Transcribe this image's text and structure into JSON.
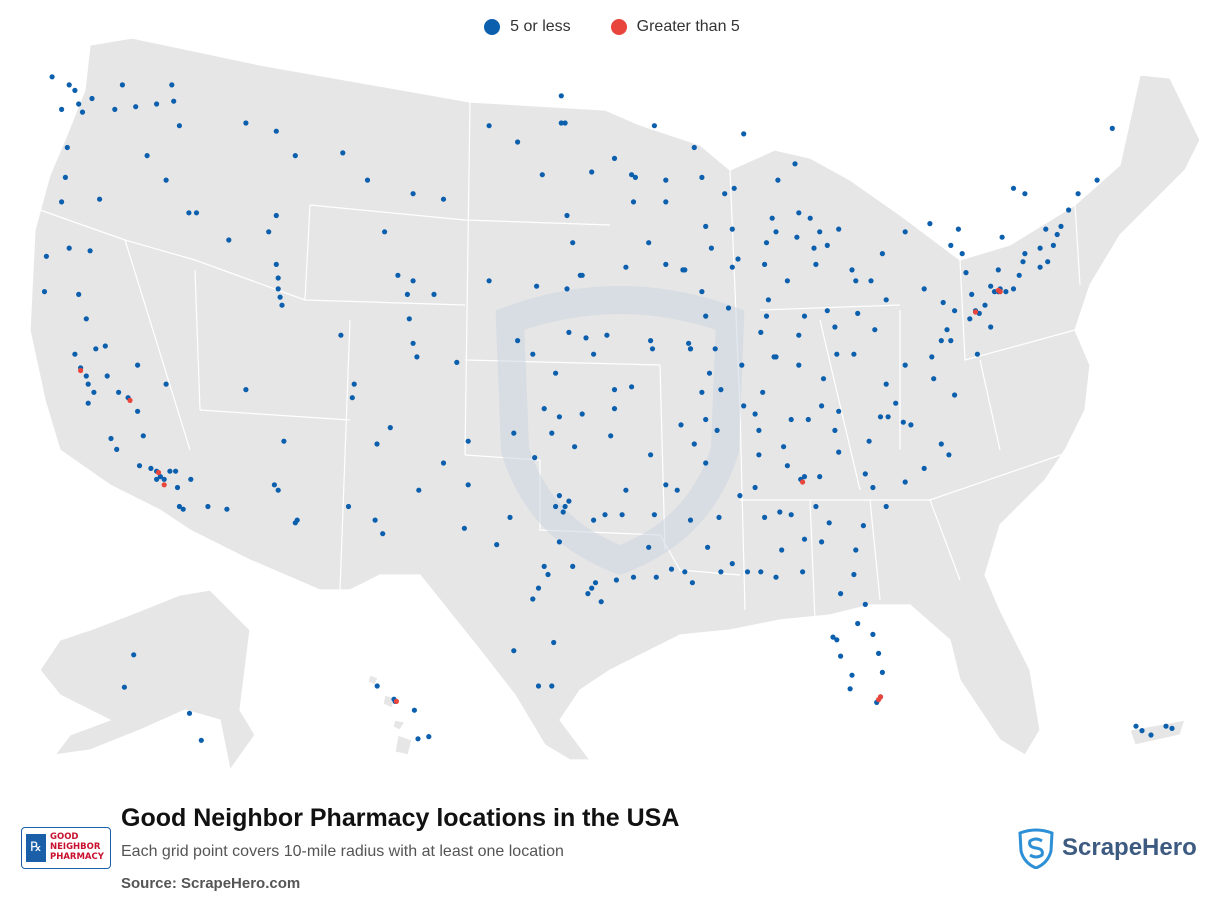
{
  "legend": {
    "items": [
      {
        "label": "5 or less",
        "color": "#0b5fad"
      },
      {
        "label": "Greater than 5",
        "color": "#e8453c"
      }
    ]
  },
  "map": {
    "land_color": "#e6e6e6",
    "border_color": "#ffffff",
    "watermark_color": "#d5dde6",
    "dots": [
      [
        -123.8,
        48.6
      ],
      [
        -123.3,
        47.4
      ],
      [
        -122.9,
        48.3
      ],
      [
        -122.6,
        48.1
      ],
      [
        -122.4,
        47.6
      ],
      [
        -122.2,
        47.3
      ],
      [
        -121.7,
        47.8
      ],
      [
        -120.5,
        47.4
      ],
      [
        -119.4,
        47.5
      ],
      [
        -118.3,
        47.6
      ],
      [
        -117.4,
        47.7
      ],
      [
        -117.1,
        46.8
      ],
      [
        -117.5,
        48.3
      ],
      [
        -120.1,
        48.3
      ],
      [
        -123.0,
        46.0
      ],
      [
        -123.1,
        44.9
      ],
      [
        -123.3,
        44.0
      ],
      [
        -122.9,
        42.3
      ],
      [
        -121.8,
        42.2
      ],
      [
        -124.1,
        42.0
      ],
      [
        -121.3,
        44.1
      ],
      [
        -118.8,
        45.7
      ],
      [
        -117.8,
        44.8
      ],
      [
        -124.2,
        40.7
      ],
      [
        -122.4,
        40.6
      ],
      [
        -122.0,
        39.7
      ],
      [
        -122.6,
        38.4
      ],
      [
        -122.3,
        37.9
      ],
      [
        -122.0,
        37.6
      ],
      [
        -121.9,
        37.3
      ],
      [
        -121.6,
        37.0
      ],
      [
        -121.9,
        36.6
      ],
      [
        -121.5,
        38.6
      ],
      [
        -121.0,
        38.7
      ],
      [
        -120.9,
        37.6
      ],
      [
        -120.3,
        37.0
      ],
      [
        -119.8,
        36.8
      ],
      [
        -119.3,
        36.3
      ],
      [
        -119.0,
        35.4
      ],
      [
        -120.7,
        35.3
      ],
      [
        -120.4,
        34.9
      ],
      [
        -119.2,
        34.3
      ],
      [
        -118.6,
        34.2
      ],
      [
        -118.3,
        34.1
      ],
      [
        -118.1,
        33.9
      ],
      [
        -117.9,
        33.8
      ],
      [
        -117.6,
        34.1
      ],
      [
        -117.3,
        34.1
      ],
      [
        -117.2,
        33.5
      ],
      [
        -117.1,
        32.8
      ],
      [
        -116.9,
        32.7
      ],
      [
        -116.5,
        33.8
      ],
      [
        -115.6,
        32.8
      ],
      [
        -118.3,
        33.8
      ],
      [
        -119.3,
        38.0
      ],
      [
        -117.8,
        37.3
      ],
      [
        -116.2,
        43.6
      ],
      [
        -116.6,
        43.6
      ],
      [
        -114.5,
        42.6
      ],
      [
        -112.4,
        42.9
      ],
      [
        -112.0,
        43.5
      ],
      [
        -113.6,
        46.9
      ],
      [
        -112.0,
        46.6
      ],
      [
        -111.0,
        45.7
      ],
      [
        -108.5,
        45.8
      ],
      [
        -104.8,
        44.3
      ],
      [
        -106.3,
        42.9
      ],
      [
        -105.6,
        41.3
      ],
      [
        -104.8,
        41.1
      ],
      [
        -107.2,
        44.8
      ],
      [
        -111.9,
        40.8
      ],
      [
        -111.8,
        40.5
      ],
      [
        -111.7,
        40.2
      ],
      [
        -111.9,
        41.2
      ],
      [
        -112.0,
        41.7
      ],
      [
        -113.6,
        37.1
      ],
      [
        -111.9,
        33.4
      ],
      [
        -112.1,
        33.6
      ],
      [
        -111.0,
        32.2
      ],
      [
        -110.9,
        32.3
      ],
      [
        -114.6,
        32.7
      ],
      [
        -111.6,
        35.2
      ],
      [
        -108.0,
        36.8
      ],
      [
        -106.7,
        35.1
      ],
      [
        -106.0,
        35.7
      ],
      [
        -104.5,
        33.4
      ],
      [
        -106.8,
        32.3
      ],
      [
        -103.2,
        34.4
      ],
      [
        -108.2,
        32.8
      ],
      [
        -105.0,
        39.7
      ],
      [
        -104.8,
        38.8
      ],
      [
        -104.6,
        38.3
      ],
      [
        -105.1,
        40.6
      ],
      [
        -108.6,
        39.1
      ],
      [
        -107.9,
        37.3
      ],
      [
        -103.7,
        40.6
      ],
      [
        -102.5,
        38.1
      ],
      [
        -100.8,
        46.8
      ],
      [
        -97.0,
        46.9
      ],
      [
        -97.0,
        47.9
      ],
      [
        -98.0,
        45.0
      ],
      [
        -96.7,
        43.5
      ],
      [
        -103.2,
        44.1
      ],
      [
        -99.3,
        46.2
      ],
      [
        -96.0,
        41.3
      ],
      [
        -96.7,
        40.8
      ],
      [
        -98.3,
        40.9
      ],
      [
        -100.8,
        41.1
      ],
      [
        -97.3,
        37.7
      ],
      [
        -95.7,
        39.0
      ],
      [
        -94.6,
        39.1
      ],
      [
        -96.6,
        39.2
      ],
      [
        -99.3,
        38.9
      ],
      [
        -98.5,
        38.4
      ],
      [
        -95.3,
        38.4
      ],
      [
        -97.5,
        35.5
      ],
      [
        -95.9,
        36.2
      ],
      [
        -97.1,
        36.1
      ],
      [
        -96.3,
        35.0
      ],
      [
        -99.5,
        35.5
      ],
      [
        -94.4,
        35.4
      ],
      [
        -98.4,
        34.6
      ],
      [
        -97.9,
        36.4
      ],
      [
        -97.3,
        32.8
      ],
      [
        -96.8,
        32.8
      ],
      [
        -96.6,
        33.0
      ],
      [
        -96.9,
        32.6
      ],
      [
        -97.1,
        33.2
      ],
      [
        -95.3,
        32.3
      ],
      [
        -94.7,
        32.5
      ],
      [
        -97.7,
        30.3
      ],
      [
        -97.9,
        30.6
      ],
      [
        -98.5,
        29.4
      ],
      [
        -98.2,
        29.8
      ],
      [
        -95.4,
        29.8
      ],
      [
        -95.6,
        29.6
      ],
      [
        -95.2,
        30.0
      ],
      [
        -94.1,
        30.1
      ],
      [
        -97.4,
        27.8
      ],
      [
        -97.5,
        26.2
      ],
      [
        -98.2,
        26.2
      ],
      [
        -99.5,
        27.5
      ],
      [
        -101.9,
        35.2
      ],
      [
        -101.9,
        33.6
      ],
      [
        -102.1,
        32.0
      ],
      [
        -106.4,
        31.8
      ],
      [
        -100.4,
        31.4
      ],
      [
        -99.7,
        32.4
      ],
      [
        -96.4,
        30.6
      ],
      [
        -97.1,
        31.5
      ],
      [
        -94.9,
        29.3
      ],
      [
        -93.8,
        32.5
      ],
      [
        -92.1,
        32.5
      ],
      [
        -91.2,
        30.5
      ],
      [
        -90.1,
        30.0
      ],
      [
        -90.5,
        30.4
      ],
      [
        -92.0,
        30.2
      ],
      [
        -93.2,
        30.2
      ],
      [
        -92.4,
        31.3
      ],
      [
        -90.2,
        32.3
      ],
      [
        -88.7,
        32.4
      ],
      [
        -89.3,
        31.3
      ],
      [
        -88.6,
        30.4
      ],
      [
        -90.9,
        33.4
      ],
      [
        -89.4,
        34.4
      ],
      [
        -92.3,
        34.7
      ],
      [
        -94.2,
        36.4
      ],
      [
        -90.7,
        35.8
      ],
      [
        -91.5,
        33.6
      ],
      [
        -93.6,
        33.4
      ],
      [
        -94.2,
        37.1
      ],
      [
        -92.2,
        38.6
      ],
      [
        -90.2,
        38.6
      ],
      [
        -90.3,
        38.8
      ],
      [
        -92.3,
        38.9
      ],
      [
        -93.3,
        37.2
      ],
      [
        -89.6,
        37.0
      ],
      [
        -93.6,
        41.6
      ],
      [
        -91.5,
        41.7
      ],
      [
        -90.6,
        41.5
      ],
      [
        -92.4,
        42.5
      ],
      [
        -95.9,
        41.3
      ],
      [
        -96.4,
        42.5
      ],
      [
        -93.2,
        44.0
      ],
      [
        -93.3,
        45.0
      ],
      [
        -93.1,
        44.9
      ],
      [
        -94.2,
        45.6
      ],
      [
        -92.1,
        46.8
      ],
      [
        -96.8,
        46.9
      ],
      [
        -95.4,
        45.1
      ],
      [
        -91.5,
        44.0
      ],
      [
        -89.4,
        43.1
      ],
      [
        -88.0,
        43.0
      ],
      [
        -87.9,
        44.5
      ],
      [
        -89.6,
        44.9
      ],
      [
        -91.5,
        44.8
      ],
      [
        -88.4,
        44.3
      ],
      [
        -90.0,
        46.0
      ],
      [
        -89.6,
        40.7
      ],
      [
        -88.2,
        40.1
      ],
      [
        -87.7,
        41.9
      ],
      [
        -88.0,
        41.6
      ],
      [
        -89.1,
        42.3
      ],
      [
        -90.5,
        41.5
      ],
      [
        -89.4,
        39.8
      ],
      [
        -88.9,
        38.6
      ],
      [
        -89.2,
        37.7
      ],
      [
        -90.2,
        38.6
      ],
      [
        -86.2,
        39.8
      ],
      [
        -86.1,
        40.4
      ],
      [
        -85.1,
        41.1
      ],
      [
        -87.5,
        38.0
      ],
      [
        -86.5,
        39.2
      ],
      [
        -85.7,
        38.3
      ],
      [
        -86.3,
        41.7
      ],
      [
        -83.0,
        40.0
      ],
      [
        -84.2,
        39.8
      ],
      [
        -84.5,
        39.1
      ],
      [
        -81.7,
        41.5
      ],
      [
        -81.5,
        41.1
      ],
      [
        -80.7,
        41.1
      ],
      [
        -83.6,
        41.7
      ],
      [
        -82.5,
        38.4
      ],
      [
        -81.6,
        38.4
      ],
      [
        -80.5,
        39.3
      ],
      [
        -85.8,
        38.3
      ],
      [
        -84.5,
        38.0
      ],
      [
        -83.2,
        37.5
      ],
      [
        -86.4,
        37.0
      ],
      [
        -88.6,
        37.1
      ],
      [
        -82.6,
        39.4
      ],
      [
        -81.4,
        39.9
      ],
      [
        -83.7,
        42.3
      ],
      [
        -83.0,
        42.4
      ],
      [
        -85.7,
        42.9
      ],
      [
        -84.6,
        42.7
      ],
      [
        -86.2,
        42.5
      ],
      [
        -84.5,
        43.6
      ],
      [
        -83.9,
        43.4
      ],
      [
        -85.6,
        44.8
      ],
      [
        -84.7,
        45.4
      ],
      [
        -87.4,
        46.5
      ],
      [
        -83.4,
        42.9
      ],
      [
        -82.4,
        43.0
      ],
      [
        -85.9,
        43.4
      ],
      [
        -86.8,
        36.2
      ],
      [
        -86.6,
        35.6
      ],
      [
        -85.3,
        35.0
      ],
      [
        -84.0,
        36.0
      ],
      [
        -82.4,
        36.3
      ],
      [
        -87.4,
        36.5
      ],
      [
        -88.8,
        35.6
      ],
      [
        -90.0,
        35.1
      ],
      [
        -89.4,
        36.0
      ],
      [
        -83.3,
        36.5
      ],
      [
        -84.9,
        36.0
      ],
      [
        -86.8,
        33.5
      ],
      [
        -86.3,
        32.4
      ],
      [
        -85.5,
        32.6
      ],
      [
        -87.6,
        33.2
      ],
      [
        -86.6,
        34.7
      ],
      [
        -88.0,
        30.7
      ],
      [
        -85.4,
        31.2
      ],
      [
        -84.4,
        33.8
      ],
      [
        -84.2,
        33.9
      ],
      [
        -83.4,
        33.9
      ],
      [
        -83.6,
        32.8
      ],
      [
        -81.1,
        32.1
      ],
      [
        -84.9,
        32.5
      ],
      [
        -82.9,
        32.2
      ],
      [
        -84.2,
        31.6
      ],
      [
        -83.3,
        31.5
      ],
      [
        -81.5,
        31.2
      ],
      [
        -85.1,
        34.3
      ],
      [
        -82.4,
        34.8
      ],
      [
        -81.0,
        34.0
      ],
      [
        -79.9,
        32.8
      ],
      [
        -80.8,
        35.2
      ],
      [
        -79.8,
        36.1
      ],
      [
        -78.6,
        35.8
      ],
      [
        -77.9,
        34.2
      ],
      [
        -77.0,
        35.1
      ],
      [
        -80.2,
        36.1
      ],
      [
        -82.6,
        35.6
      ],
      [
        -79.0,
        35.9
      ],
      [
        -80.6,
        33.5
      ],
      [
        -78.9,
        33.7
      ],
      [
        -76.6,
        34.7
      ],
      [
        -77.4,
        37.5
      ],
      [
        -76.3,
        36.9
      ],
      [
        -78.9,
        38.0
      ],
      [
        -79.9,
        37.3
      ],
      [
        -77.5,
        38.3
      ],
      [
        -79.4,
        36.6
      ],
      [
        -76.7,
        39.3
      ],
      [
        -77.0,
        38.9
      ],
      [
        -75.5,
        39.7
      ],
      [
        -76.5,
        38.9
      ],
      [
        -75.1,
        38.4
      ],
      [
        -75.2,
        40.0
      ],
      [
        -75.4,
        40.6
      ],
      [
        -76.3,
        40.0
      ],
      [
        -76.9,
        40.3
      ],
      [
        -77.9,
        40.8
      ],
      [
        -79.9,
        40.4
      ],
      [
        -80.1,
        42.1
      ],
      [
        -75.7,
        41.4
      ],
      [
        -74.2,
        40.7
      ],
      [
        -74.4,
        40.9
      ],
      [
        -74.0,
        40.7
      ],
      [
        -73.9,
        40.8
      ],
      [
        -73.6,
        40.7
      ],
      [
        -73.2,
        40.8
      ],
      [
        -74.7,
        40.2
      ],
      [
        -75.0,
        39.9
      ],
      [
        -74.4,
        39.4
      ],
      [
        -73.8,
        42.7
      ],
      [
        -76.1,
        43.0
      ],
      [
        -77.6,
        43.2
      ],
      [
        -78.9,
        42.9
      ],
      [
        -75.9,
        42.1
      ],
      [
        -76.5,
        42.4
      ],
      [
        -74.0,
        41.5
      ],
      [
        -72.9,
        41.3
      ],
      [
        -72.7,
        41.8
      ],
      [
        -71.8,
        41.6
      ],
      [
        -71.4,
        41.8
      ],
      [
        -71.1,
        42.4
      ],
      [
        -71.8,
        42.3
      ],
      [
        -72.6,
        42.1
      ],
      [
        -70.9,
        42.8
      ],
      [
        -71.5,
        43.0
      ],
      [
        -70.3,
        43.7
      ],
      [
        -68.8,
        44.8
      ],
      [
        -68.0,
        46.7
      ],
      [
        -72.6,
        44.3
      ],
      [
        -73.2,
        44.5
      ],
      [
        -70.7,
        43.1
      ],
      [
        -69.8,
        44.3
      ],
      [
        -82.5,
        27.9
      ],
      [
        -82.3,
        27.3
      ],
      [
        -81.4,
        28.5
      ],
      [
        -81.7,
        26.6
      ],
      [
        -80.1,
        26.7
      ],
      [
        -80.2,
        25.8
      ],
      [
        -80.4,
        25.6
      ],
      [
        -81.6,
        30.3
      ],
      [
        -84.3,
        30.4
      ],
      [
        -87.2,
        30.4
      ],
      [
        -82.3,
        29.6
      ],
      [
        -80.6,
        28.1
      ],
      [
        -81.0,
        29.2
      ],
      [
        -81.8,
        26.1
      ],
      [
        -82.7,
        28.0
      ],
      [
        -80.3,
        27.4
      ],
      [
        -86.5,
        30.4
      ],
      [
        -85.7,
        30.2
      ],
      [
        -149.9,
        61.2
      ],
      [
        -147.7,
        64.8
      ],
      [
        -134.4,
        58.3
      ],
      [
        -131.6,
        55.3
      ],
      [
        -157.9,
        21.3
      ],
      [
        -158.0,
        21.4
      ],
      [
        -156.3,
        20.9
      ],
      [
        -155.1,
        19.7
      ],
      [
        -156.0,
        19.6
      ],
      [
        -159.4,
        22.0
      ],
      [
        -66.1,
        18.4
      ],
      [
        -66.6,
        18.0
      ],
      [
        -65.9,
        18.3
      ],
      [
        -66.9,
        18.2
      ],
      [
        -67.1,
        18.4
      ]
    ],
    "red_dots": [
      [
        -122.3,
        37.8
      ],
      [
        -118.2,
        34.05
      ],
      [
        -117.9,
        33.6
      ],
      [
        -119.7,
        36.7
      ],
      [
        -74.0,
        40.75
      ],
      [
        -73.9,
        40.7
      ],
      [
        -75.2,
        39.95
      ],
      [
        -80.2,
        25.8
      ],
      [
        -80.3,
        25.7
      ],
      [
        -84.3,
        33.7
      ],
      [
        -157.8,
        21.3
      ]
    ]
  },
  "footer": {
    "title": "Good Neighbor Pharmacy locations in the USA",
    "subtitle": "Each grid point covers 10-mile radius with at least one location",
    "source": "Source: ScrapeHero.com",
    "brand_lines": [
      "GOOD",
      "NEIGHBOR",
      "PHARMACY"
    ],
    "brand_mark": "℞",
    "scrapehero_name": "ScrapeHero"
  }
}
